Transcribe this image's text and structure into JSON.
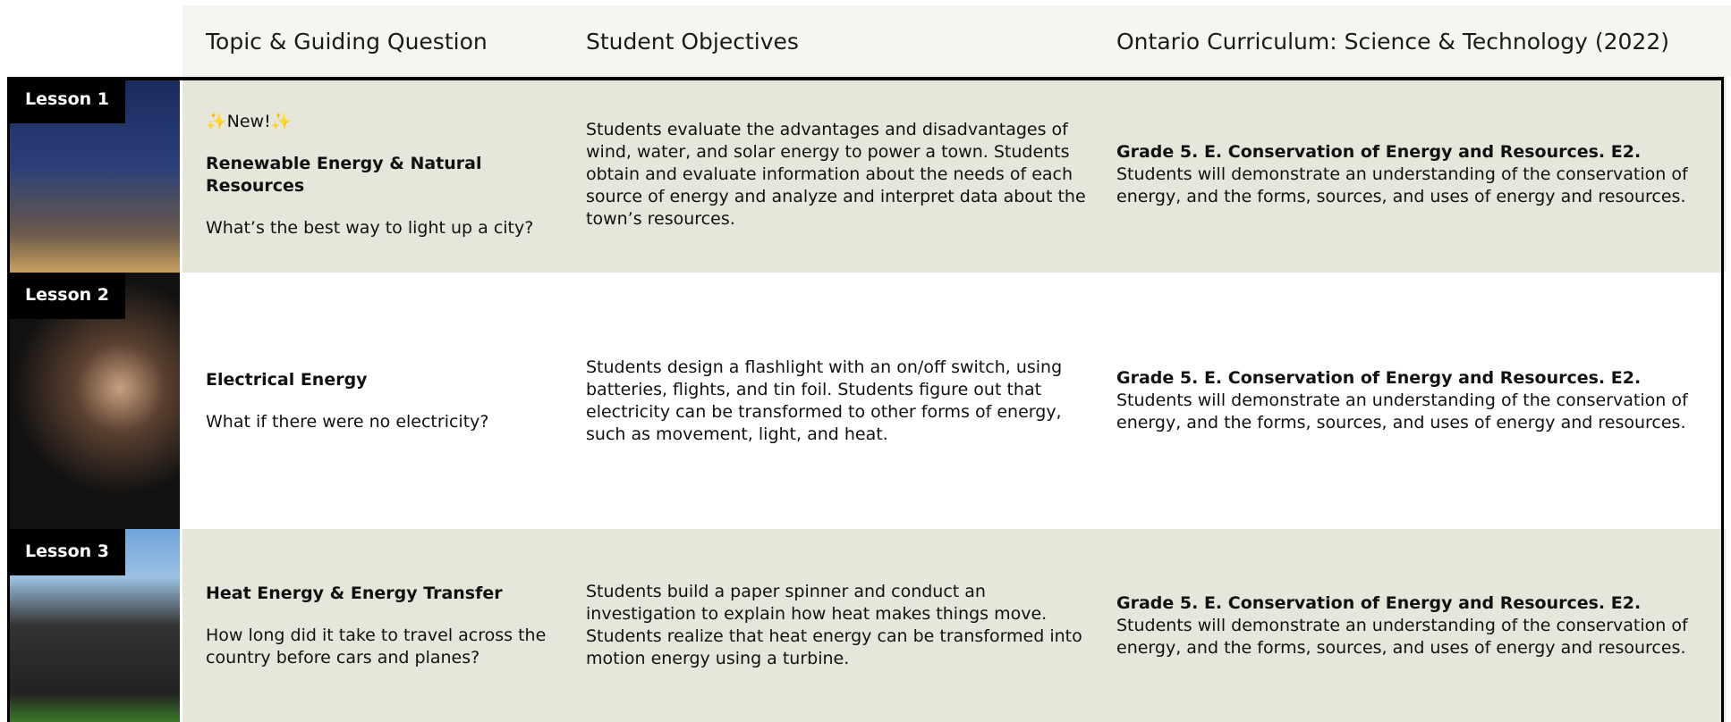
{
  "header": {
    "columns": [
      "Topic & Guiding Question",
      "Student Objectives",
      "Ontario Curriculum: Science & Technology (2022)"
    ]
  },
  "lessons": [
    {
      "label": "Lesson 1",
      "badge": "✨New!✨",
      "topic": "Renewable Energy & Natural Resources",
      "question": "What’s the best way to light up a city?",
      "objectives": "Students evaluate the advantages and disadvantages of wind, water, and solar energy to power a town. Students obtain and evaluate information about the needs of each source of energy and analyze and interpret data about the town’s resources.",
      "curriculum_title": "Grade 5. E. Conservation of Energy and Resources. E2.",
      "curriculum_text": "Students will demonstrate an understanding of the conservation of energy, and the forms, sources, and uses of energy and resources."
    },
    {
      "label": "Lesson 2",
      "topic": "Electrical Energy",
      "question": "What if there were no electricity?",
      "objectives": "Students design a flashlight with an on/off switch, using batteries, flights, and tin foil. Students figure out that electricity can be transformed to other forms of energy, such as movement, light, and heat.",
      "curriculum_title": "Grade 5. E. Conservation of Energy and Resources. E2.",
      "curriculum_text": "Students will demonstrate an understanding of the conservation of energy, and the forms, sources, and uses of energy and resources."
    },
    {
      "label": "Lesson 3",
      "topic": "Heat Energy & Energy Transfer",
      "question": "How long did it take to travel across the country before cars and planes?",
      "objectives": "Students build a paper spinner and conduct an investigation to explain how heat makes things move. Students realize that heat energy can be transformed into motion energy using a turbine.",
      "curriculum_title": "Grade 5. E. Conservation of Energy and Resources. E2.",
      "curriculum_text": "Students will demonstrate an understanding of the conservation of energy, and the forms, sources, and uses of energy and resources."
    }
  ]
}
